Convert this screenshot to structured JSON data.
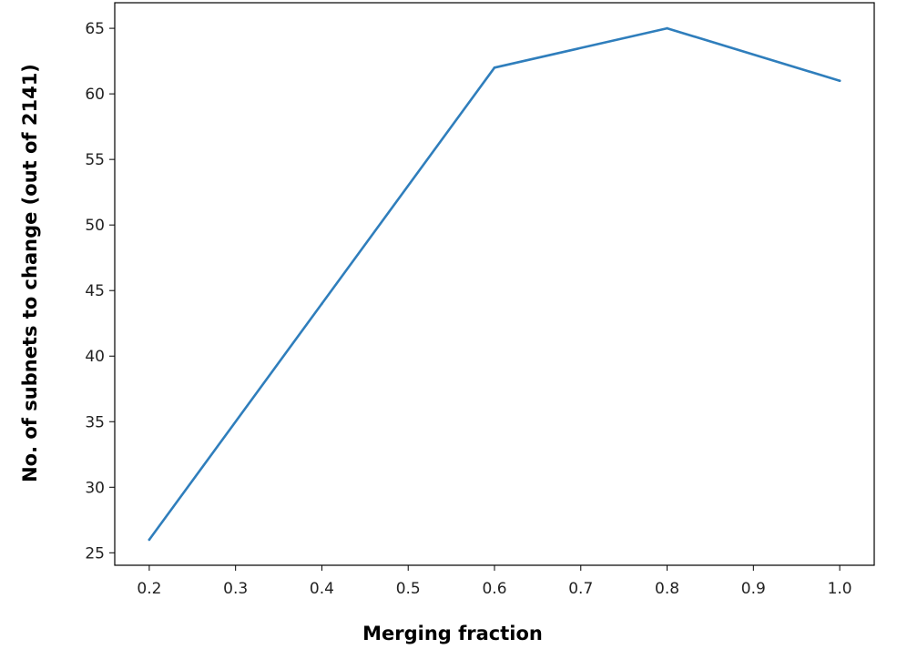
{
  "chart_data": {
    "type": "line",
    "title": "",
    "xlabel": "Merging fraction",
    "ylabel": "No. of subnets to change (out of 2141)",
    "x": [
      0.2,
      0.4,
      0.6,
      0.8,
      1.0
    ],
    "series": [
      {
        "values": [
          26,
          44,
          62,
          65,
          61
        ],
        "color": "#2f7ebc"
      }
    ],
    "xticks": [
      0.2,
      0.3,
      0.4,
      0.5,
      0.6,
      0.7,
      0.8,
      0.9,
      1.0
    ],
    "xtick_labels": [
      "0.2",
      "0.3",
      "0.4",
      "0.5",
      "0.6",
      "0.7",
      "0.8",
      "0.9",
      "1.0"
    ],
    "yticks": [
      25,
      30,
      35,
      40,
      45,
      50,
      55,
      60,
      65
    ],
    "ytick_labels": [
      "25",
      "30",
      "35",
      "40",
      "45",
      "50",
      "55",
      "60",
      "65"
    ],
    "xlim": [
      0.16,
      1.04
    ],
    "ylim": [
      24.05,
      66.95
    ],
    "grid": false,
    "legend": "none"
  }
}
